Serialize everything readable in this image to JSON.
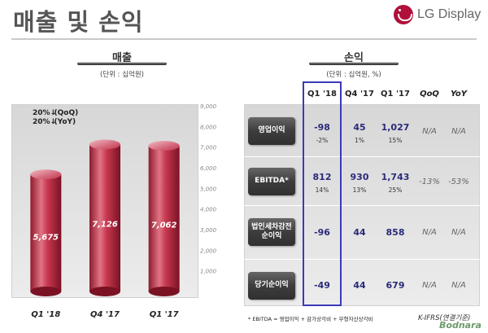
{
  "page": {
    "title": "매출 및 손익",
    "brand": "LG Display"
  },
  "revenue": {
    "title": "매출",
    "unit": "(단위 : 십억원)",
    "growth": [
      {
        "value": "20%",
        "label": "(QoQ)",
        "direction": "down"
      },
      {
        "value": "20%",
        "label": "(YoY)",
        "direction": "down"
      }
    ]
  },
  "chart_data": {
    "type": "bar",
    "categories": [
      "Q1 '18",
      "Q4 '17",
      "Q1 '17"
    ],
    "values": [
      5675,
      7126,
      7062
    ],
    "value_labels": [
      "5,675",
      "7,126",
      "7,062"
    ],
    "title": "매출",
    "xlabel": "",
    "ylabel": "",
    "ylim": [
      0,
      9000
    ],
    "yticks": [
      "1,000",
      "2,000",
      "3,000",
      "4,000",
      "5,000",
      "6,000",
      "7,000",
      "8,000",
      "9,000"
    ],
    "ytick_values": [
      1000,
      2000,
      3000,
      4000,
      5000,
      6000,
      7000,
      8000,
      9000
    ],
    "grid": false,
    "legend": "none",
    "bar_color": "#c0314a"
  },
  "pnl": {
    "title": "손익",
    "unit": "(단위 : 십억원, %)",
    "columns": [
      "Q1 '18",
      "Q4 '17",
      "Q1 '17",
      "QoQ",
      "YoY"
    ],
    "rows": [
      {
        "label": "영업이익",
        "q1_18": "-98",
        "q1_18_sub": "-2%",
        "q4_17": "45",
        "q4_17_sub": "1%",
        "q1_17": "1,027",
        "q1_17_sub": "15%",
        "qoq": "N/A",
        "yoy": "N/A"
      },
      {
        "label": "EBITDA*",
        "q1_18": "812",
        "q1_18_sub": "14%",
        "q4_17": "930",
        "q4_17_sub": "13%",
        "q1_17": "1,743",
        "q1_17_sub": "25%",
        "qoq": "-13%",
        "yoy": "-53%"
      },
      {
        "label": "법인세차감전 순이익",
        "q1_18": "-96",
        "q1_18_sub": "",
        "q4_17": "44",
        "q4_17_sub": "",
        "q1_17": "858",
        "q1_17_sub": "",
        "qoq": "N/A",
        "yoy": "N/A"
      },
      {
        "label": "당기순이익",
        "q1_18": "-49",
        "q1_18_sub": "",
        "q4_17": "44",
        "q4_17_sub": "",
        "q1_17": "679",
        "q1_17_sub": "",
        "qoq": "N/A",
        "yoy": "N/A"
      }
    ],
    "highlight_color": "#3a3ab8"
  },
  "footnote": "* EBITDA = 영업이익 + 감가상각비 + 무형자산상각비",
  "basis_note": "K-IFRS(연결기준)",
  "watermark": "Bodnara"
}
